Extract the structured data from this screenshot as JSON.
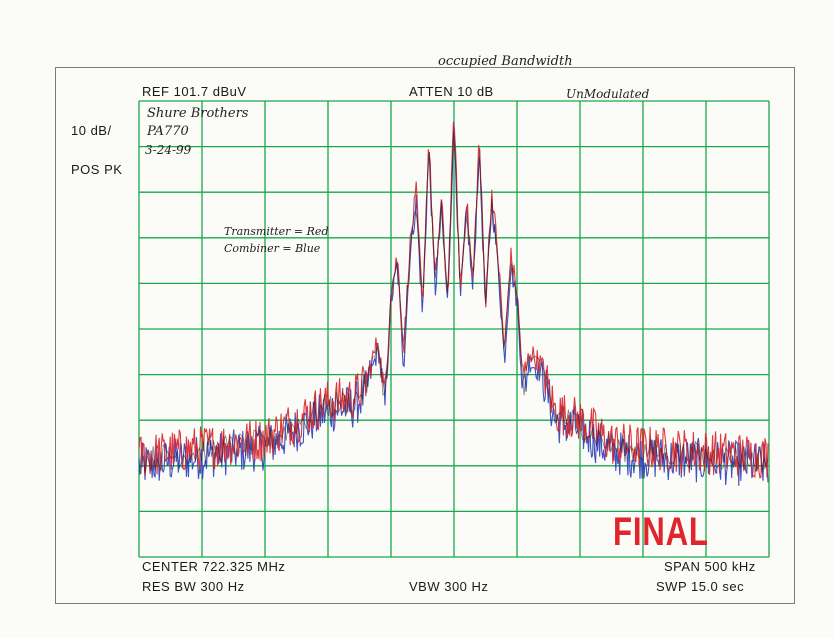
{
  "header": {
    "ref": "REF  101.7 dBuV",
    "atten": "ATTEN 10 dB",
    "scale": "10 dB/",
    "detector": "POS PK"
  },
  "footer": {
    "center": "CENTER 722.325 MHz",
    "span": "SPAN 500 kHz",
    "res_bw": "RES BW 300  Hz",
    "vbw": "VBW 300  Hz",
    "swp": "SWP 15.0  sec"
  },
  "notes": {
    "title": "occupied Bandwidth",
    "mode": "UnModulated",
    "device_line1": "Shure Brothers",
    "device_line2": "PA770",
    "date": "3-24-99",
    "legend_line1": "Transmitter = Red",
    "legend_line2": "Combiner = Blue"
  },
  "stamp": "FINAL",
  "colors": {
    "grid": "#1aa84a",
    "transmitter": "#d8232a",
    "combiner": "#2a3fb8",
    "trace_dark": "#1a1a1a",
    "stamp": "#e0252b"
  },
  "chart_data": {
    "type": "line",
    "x_unit": "kHz offset from center",
    "y_unit": "dB below reference",
    "xlim": [
      -250,
      250
    ],
    "ylim": [
      -100,
      0
    ],
    "grid": true,
    "series": [
      {
        "name": "Transmitter = Red",
        "x": [
          -250,
          -200,
          -150,
          -125,
          -100,
          -80,
          -70,
          -60,
          -55,
          -50,
          -45,
          -40,
          -35,
          -30,
          -25,
          -20,
          -15,
          -10,
          -5,
          0,
          5,
          10,
          15,
          20,
          25,
          30,
          35,
          40,
          45,
          50,
          55,
          60,
          70,
          80,
          100,
          125,
          150,
          200,
          250
        ],
        "y": [
          -78,
          -76,
          -74,
          -70,
          -66,
          -65,
          -62,
          -52,
          -66,
          -42,
          -34,
          -55,
          -32,
          -20,
          -45,
          -8,
          -40,
          -22,
          -43,
          -2,
          -42,
          -22,
          -40,
          -8,
          -44,
          -20,
          -34,
          -55,
          -34,
          -42,
          -62,
          -55,
          -58,
          -68,
          -70,
          -75,
          -76,
          -77,
          -78
        ]
      },
      {
        "name": "Combiner = Blue",
        "x": [
          -250,
          -200,
          -150,
          -125,
          -100,
          -80,
          -70,
          -60,
          -55,
          -50,
          -45,
          -40,
          -35,
          -30,
          -25,
          -20,
          -15,
          -10,
          -5,
          0,
          5,
          10,
          15,
          20,
          25,
          30,
          35,
          40,
          45,
          50,
          55,
          60,
          70,
          80,
          100,
          125,
          150,
          200,
          250
        ],
        "y": [
          -80,
          -78,
          -76,
          -72,
          -68,
          -67,
          -64,
          -54,
          -68,
          -44,
          -36,
          -58,
          -34,
          -22,
          -47,
          -10,
          -42,
          -24,
          -45,
          -3,
          -44,
          -24,
          -42,
          -10,
          -46,
          -22,
          -36,
          -57,
          -36,
          -44,
          -64,
          -57,
          -60,
          -70,
          -72,
          -77,
          -78,
          -79,
          -80
        ]
      }
    ]
  }
}
